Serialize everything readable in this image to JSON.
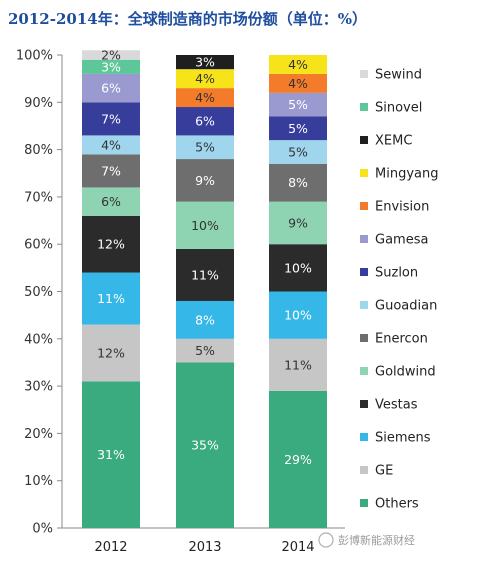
{
  "chart_data": {
    "type": "bar",
    "stacked": true,
    "title": "2012-2014年：全球制造商的市场份额（单位：%）",
    "categories": [
      "2012",
      "2013",
      "2014"
    ],
    "ylim": [
      0,
      100
    ],
    "y_ticks": [
      "0%",
      "10%",
      "20%",
      "30%",
      "40%",
      "50%",
      "60%",
      "70%",
      "80%",
      "90%",
      "100%"
    ],
    "grid": false,
    "legend_position": "right",
    "series": [
      {
        "name": "Others",
        "color": "#3aaa7f",
        "label_color": "#ffffff",
        "values": [
          31,
          35,
          29
        ]
      },
      {
        "name": "GE",
        "color": "#c6c6c6",
        "label_color": "#333333",
        "values": [
          12,
          5,
          11
        ]
      },
      {
        "name": "Siemens",
        "color": "#35b7e8",
        "label_color": "#ffffff",
        "values": [
          11,
          8,
          10
        ]
      },
      {
        "name": "Vestas",
        "color": "#2b2b2b",
        "label_color": "#ffffff",
        "values": [
          12,
          11,
          10
        ]
      },
      {
        "name": "Goldwind",
        "color": "#8fd4b2",
        "label_color": "#333333",
        "values": [
          6,
          10,
          9
        ]
      },
      {
        "name": "Enercon",
        "color": "#6e6e6e",
        "label_color": "#ffffff",
        "values": [
          7,
          9,
          8
        ]
      },
      {
        "name": "Guoadian",
        "color": "#9fd6ee",
        "label_color": "#333333",
        "values": [
          4,
          5,
          5
        ]
      },
      {
        "name": "Suzlon",
        "color": "#363d9b",
        "label_color": "#ffffff",
        "values": [
          7,
          6,
          5
        ]
      },
      {
        "name": "Gamesa",
        "color": "#9b9ad0",
        "label_color": "#ffffff",
        "values": [
          6,
          0,
          5
        ]
      },
      {
        "name": "Envision",
        "color": "#f47b2a",
        "label_color": "#333333",
        "values": [
          0,
          4,
          4
        ]
      },
      {
        "name": "Mingyang",
        "color": "#f7e31a",
        "label_color": "#333333",
        "values": [
          0,
          4,
          4
        ]
      },
      {
        "name": "XEMC",
        "color": "#1f1f1f",
        "label_color": "#ffffff",
        "values": [
          0,
          3,
          0
        ]
      },
      {
        "name": "Sinovel",
        "color": "#5ec79a",
        "label_color": "#ffffff",
        "values": [
          3,
          0,
          0
        ]
      },
      {
        "name": "Sewind",
        "color": "#d9d9d9",
        "label_color": "#333333",
        "values": [
          2,
          0,
          0
        ]
      }
    ]
  },
  "watermark": "彭博新能源财经"
}
